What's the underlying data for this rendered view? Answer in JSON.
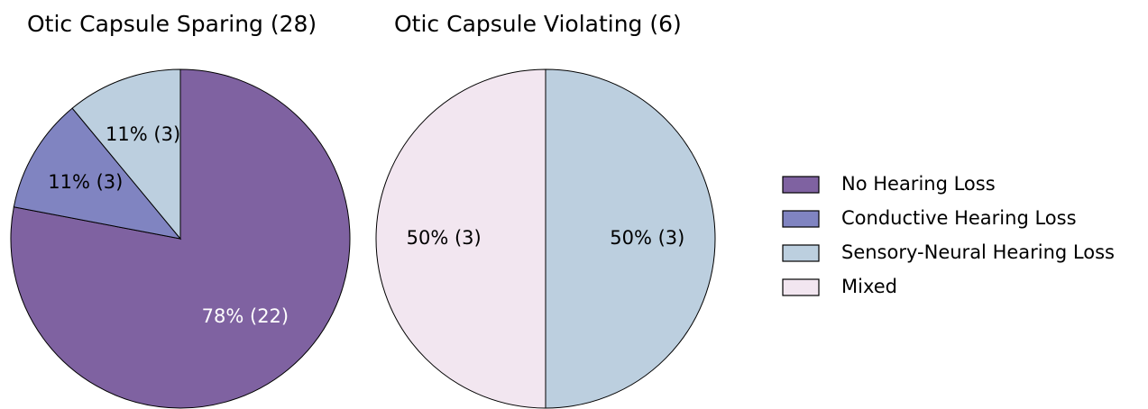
{
  "chart_data": [
    {
      "type": "pie",
      "title": "Otic Capsule Sparing (28)",
      "categories": [
        "No Hearing Loss",
        "Conductive Hearing Loss",
        "Sensory-Neural Hearing Loss"
      ],
      "values": [
        78,
        11,
        11
      ],
      "value_labels": [
        "78% (22)",
        "11% (3)",
        "11% (3)"
      ],
      "colors": [
        "#7f62a1",
        "#8084c1",
        "#bccfdf"
      ],
      "label_colors": [
        "#ffffff",
        "#000000",
        "#000000"
      ]
    },
    {
      "type": "pie",
      "title": "Otic Capsule Violating (6)",
      "categories": [
        "Sensory-Neural Hearing Loss",
        "Mixed"
      ],
      "values": [
        50,
        50
      ],
      "value_labels": [
        "50% (3)",
        "50% (3)"
      ],
      "colors": [
        "#bccfdf",
        "#f2e6f0"
      ],
      "label_colors": [
        "#000000",
        "#000000"
      ]
    }
  ],
  "legend": [
    {
      "name": "No Hearing Loss",
      "color": "#7f62a1"
    },
    {
      "name": "Conductive Hearing Loss",
      "color": "#8084c1"
    },
    {
      "name": "Sensory-Neural Hearing Loss",
      "color": "#bccfdf"
    },
    {
      "name": "Mixed",
      "color": "#f2e6f0"
    }
  ]
}
